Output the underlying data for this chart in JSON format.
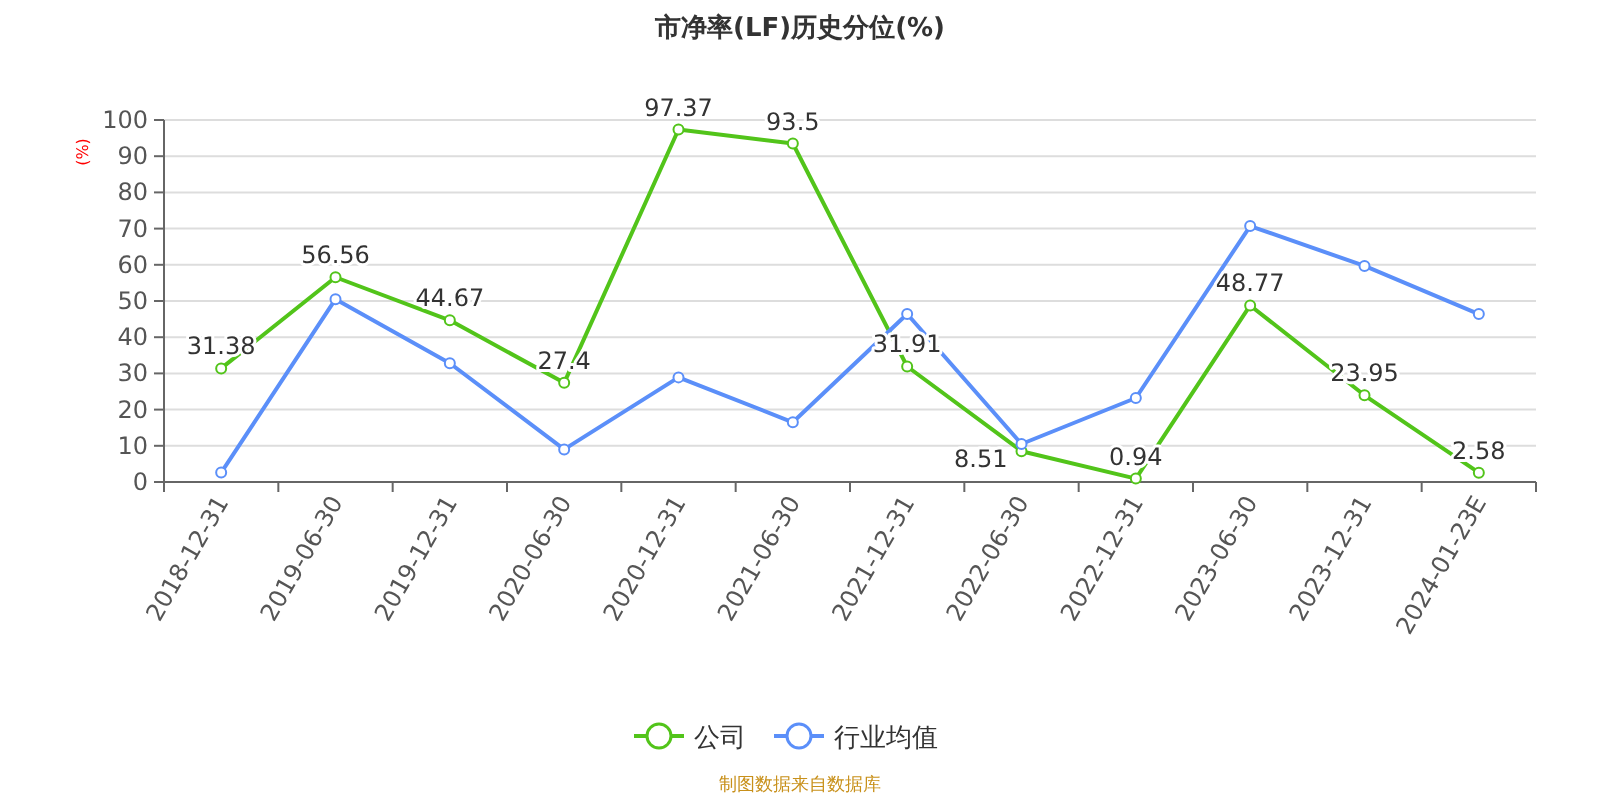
{
  "chart_data": {
    "type": "line",
    "title": "市净率(LF)历史分位(%)",
    "ylabel": "(%)",
    "categories": [
      "2018-12-31",
      "2019-06-30",
      "2019-12-31",
      "2020-06-30",
      "2020-12-31",
      "2021-06-30",
      "2021-12-31",
      "2022-06-30",
      "2022-12-31",
      "2023-06-30",
      "2023-12-31",
      "2024-01-23E"
    ],
    "series": [
      {
        "name": "公司",
        "color": "#52c41a",
        "values": [
          31.38,
          56.56,
          44.67,
          27.4,
          97.37,
          93.5,
          31.91,
          8.51,
          0.94,
          48.77,
          23.95,
          2.58
        ],
        "value_labels": [
          "31.38",
          "56.56",
          "44.67",
          "27.4",
          "97.37",
          "93.5",
          "31.91",
          "8.51",
          "0.94",
          "48.77",
          "23.95",
          "2.58"
        ]
      },
      {
        "name": "行业均值",
        "color": "#5b8ff9",
        "values": [
          2.6,
          50.5,
          32.8,
          9,
          28.9,
          16.5,
          46.4,
          10.5,
          23.2,
          70.7,
          59.7,
          46.4
        ]
      }
    ],
    "ylim": [
      0,
      100
    ],
    "yticks": [
      0,
      10,
      20,
      30,
      40,
      50,
      60,
      70,
      80,
      90,
      100
    ],
    "grid": "y",
    "legend": "bottom",
    "marker": "circle",
    "line_style": "solid",
    "annotations": [
      "制图数据来自数据库"
    ]
  }
}
